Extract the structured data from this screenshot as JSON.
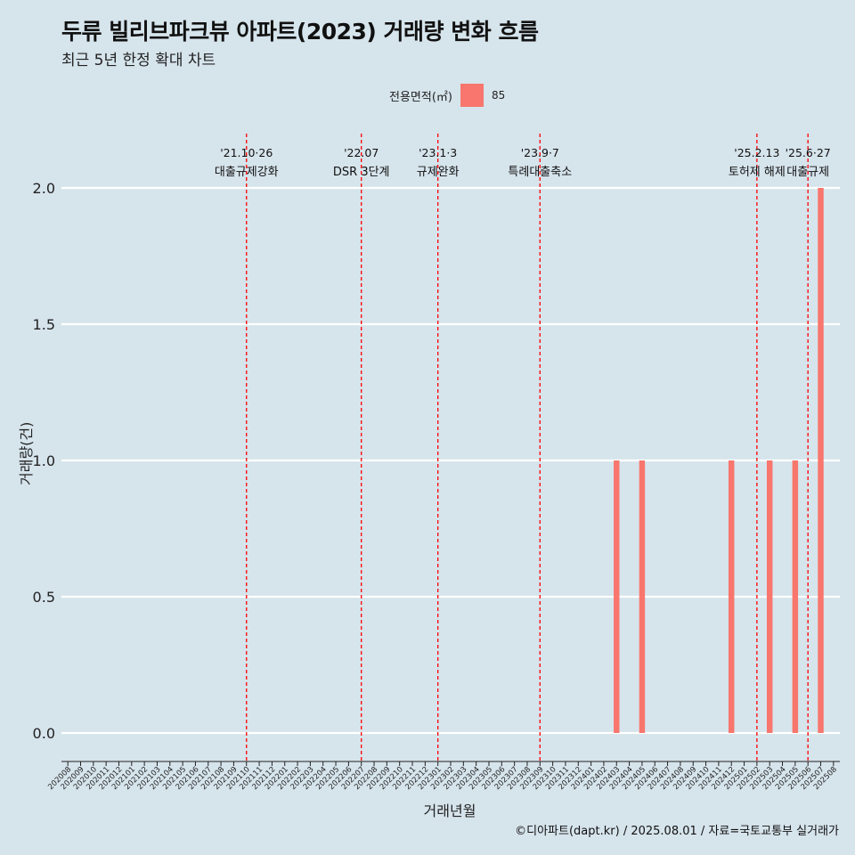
{
  "header": {
    "title": "두류 빌리브파크뷰 아파트(2023) 거래량 변화 흐름",
    "subtitle": "최근 5년 한정 확대 차트"
  },
  "legend": {
    "title": "전용면적(㎡)",
    "items": [
      {
        "label": "85",
        "color": "#f8766d"
      }
    ]
  },
  "caption": "©디아파트(dapt.kr) / 2025.08.01 / 자료=국토교통부 실거래가",
  "chart_data": {
    "type": "bar",
    "title": "두류 빌리브파크뷰 아파트(2023) 거래량 변화 흐름",
    "subtitle": "최근 5년 한정 확대 차트",
    "xlabel": "거래년월",
    "ylabel": "거래량(건)",
    "ylim": [
      0,
      2
    ],
    "yticks": [
      "0.0",
      "0.5",
      "1.0",
      "1.5",
      "2.0"
    ],
    "grid": true,
    "legend_position": "top",
    "bar_color": "#f8766d",
    "categories": [
      "202008",
      "202009",
      "202010",
      "202011",
      "202012",
      "202101",
      "202102",
      "202103",
      "202104",
      "202105",
      "202106",
      "202107",
      "202108",
      "202109",
      "202110",
      "202111",
      "202112",
      "202201",
      "202202",
      "202203",
      "202204",
      "202205",
      "202206",
      "202207",
      "202208",
      "202209",
      "202210",
      "202211",
      "202212",
      "202301",
      "202302",
      "202303",
      "202304",
      "202305",
      "202306",
      "202307",
      "202308",
      "202309",
      "202310",
      "202311",
      "202312",
      "202401",
      "202402",
      "202403",
      "202404",
      "202405",
      "202406",
      "202407",
      "202408",
      "202409",
      "202410",
      "202411",
      "202412",
      "202501",
      "202502",
      "202503",
      "202504",
      "202505",
      "202506",
      "202507",
      "202508"
    ],
    "series": [
      {
        "name": "85",
        "values": [
          {
            "x": "202403",
            "y": 1
          },
          {
            "x": "202405",
            "y": 1
          },
          {
            "x": "202412",
            "y": 1
          },
          {
            "x": "202503",
            "y": 1
          },
          {
            "x": "202505",
            "y": 1
          },
          {
            "x": "202507",
            "y": 2
          }
        ]
      }
    ],
    "annotations": [
      {
        "x": 14.5,
        "date": "'21.10·26",
        "label": "대출규제강화"
      },
      {
        "x": 23.5,
        "date": "'22.07",
        "label": "DSR 3단계"
      },
      {
        "x": 29.5,
        "date": "'23.1·3",
        "label": "규제완화"
      },
      {
        "x": 37.5,
        "date": "'23.9·7",
        "label": "특례대출축소"
      },
      {
        "x": 54.5,
        "date": "'25.2.13",
        "label": "토허제 해제"
      },
      {
        "x": 58.5,
        "date": "'25.6·27",
        "label": "대출규제"
      }
    ],
    "annotation_line_color": "#ff0000"
  }
}
